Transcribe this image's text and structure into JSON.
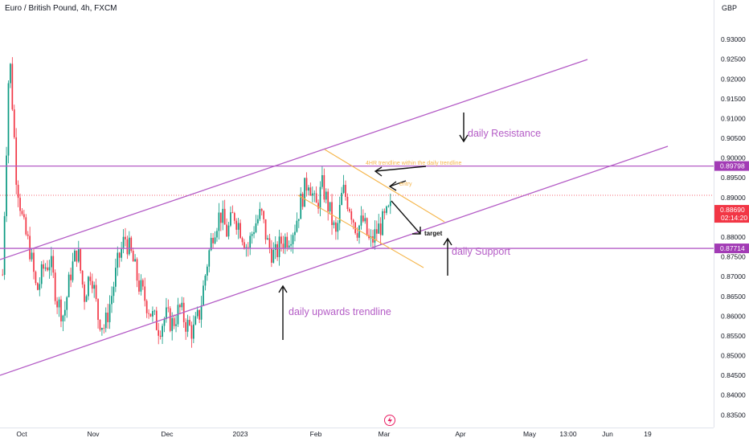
{
  "header": {
    "symbol": "Euro / British Pound, 4h, FXCM",
    "currency": "GBP"
  },
  "chart_data": {
    "type": "candlestick",
    "y_ticks": [
      0.835,
      0.84,
      0.845,
      0.85,
      0.855,
      0.86,
      0.865,
      0.87,
      0.875,
      0.88,
      0.885,
      0.89,
      0.895,
      0.9,
      0.905,
      0.91,
      0.915,
      0.92,
      0.925,
      0.93
    ],
    "y_tick_labels": [
      "0.83500",
      "0.84000",
      "0.84500",
      "0.85000",
      "0.85500",
      "0.86000",
      "0.86500",
      "0.87000",
      "0.87500",
      "0.88000",
      "0.88500",
      "0.89000",
      "0.89500",
      "0.90000",
      "0.90500",
      "0.91000",
      "0.91500",
      "0.92000",
      "0.92500",
      "0.93000"
    ],
    "ylim": [
      0.8318,
      0.9343
    ],
    "x_labels": [
      "Oct",
      "Nov",
      "Dec",
      "2023",
      "Feb",
      "Mar",
      "Apr",
      "May",
      "13:00",
      "Jun",
      "19"
    ],
    "price_badges": [
      {
        "label": "0.89798",
        "value": 0.89798,
        "color": "#a23bb5"
      },
      {
        "label": "0.88690",
        "value": 0.8869,
        "sub": "02:14:20",
        "color": "#f23645"
      },
      {
        "label": "0.87714",
        "value": 0.87714,
        "color": "#a23bb5"
      }
    ],
    "series_close": [
      0.8705,
      0.9275,
      0.896,
      0.883,
      0.877,
      0.866,
      0.872,
      0.874,
      0.864,
      0.86,
      0.871,
      0.877,
      0.865,
      0.872,
      0.86,
      0.857,
      0.865,
      0.874,
      0.88,
      0.875,
      0.868,
      0.864,
      0.86,
      0.857,
      0.86,
      0.858,
      0.862,
      0.858,
      0.856,
      0.861,
      0.873,
      0.882,
      0.886,
      0.881,
      0.886,
      0.882,
      0.877,
      0.883,
      0.886,
      0.878,
      0.875,
      0.879,
      0.88,
      0.883,
      0.89,
      0.895,
      0.887,
      0.893,
      0.887,
      0.88,
      0.892,
      0.888,
      0.882,
      0.884,
      0.878,
      0.8815,
      0.884,
      0.8869
    ],
    "lines": [
      {
        "name": "daily-resistance-line",
        "color": "#b45cc6",
        "kind": "horizontal",
        "value": 0.89798
      },
      {
        "name": "daily-support-line",
        "color": "#b45cc6",
        "kind": "horizontal",
        "value": 0.87714
      },
      {
        "name": "channel-upper-line",
        "color": "#b45cc6",
        "kind": "trend"
      },
      {
        "name": "channel-lower-line",
        "color": "#b45cc6",
        "kind": "trend"
      },
      {
        "name": "4hr-channel-upper-line",
        "color": "#f5b54a",
        "kind": "trend"
      },
      {
        "name": "4hr-channel-lower-line",
        "color": "#f5b54a",
        "kind": "trend"
      }
    ],
    "annotations": {
      "daily_resistance": "daily Resistance",
      "daily_support": "daily Support",
      "daily_trendline": "daily upwards trendline",
      "four_hr": "4HR trendline within the daily trendline",
      "entry": "entry",
      "target": "target"
    },
    "colors": {
      "up": "#089981",
      "down": "#f23645",
      "purple": "#b45cc6",
      "orange": "#f5b54a"
    }
  }
}
